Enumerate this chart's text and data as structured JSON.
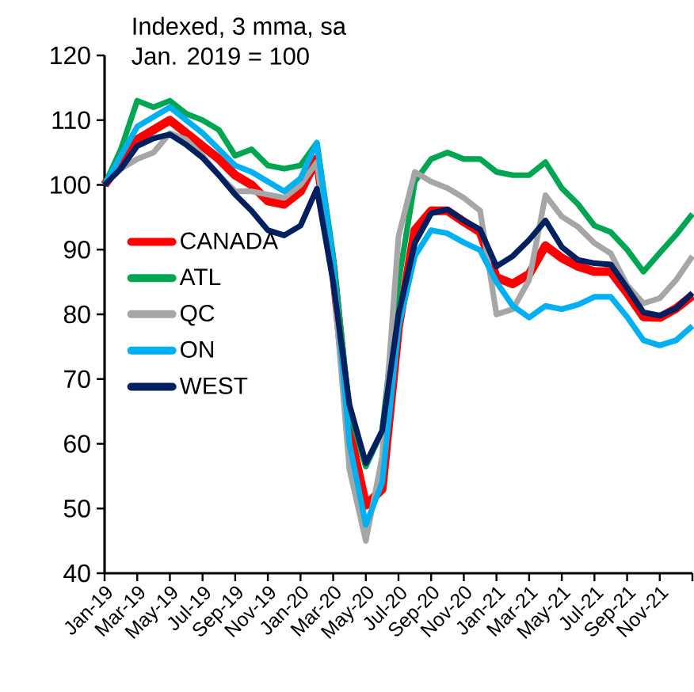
{
  "chart_data": {
    "type": "line",
    "title": "Indexed, 3 mma, sa",
    "subtitle": "Jan. 2019 = 100",
    "categories": [
      "Jan-19",
      null,
      "Mar-19",
      null,
      "May-19",
      null,
      "Jul-19",
      null,
      "Sep-19",
      null,
      "Nov-19",
      null,
      "Jan-20",
      null,
      "Mar-20",
      null,
      "May-20",
      null,
      "Jul-20",
      null,
      "Sep-20",
      null,
      "Nov-20",
      null,
      "Jan-21",
      null,
      "Mar-21",
      null,
      "May-21",
      null,
      "Jul-21",
      null,
      "Sep-21",
      null,
      "Nov-21",
      null,
      null
    ],
    "series": [
      {
        "name": "CANADA",
        "color": "#ff0000",
        "values": [
          100,
          103.5,
          107,
          108.5,
          110,
          108,
          106,
          104,
          101.5,
          100,
          97.5,
          97,
          99,
          104,
          87,
          62,
          50.5,
          53,
          78,
          93,
          96,
          96,
          94.3,
          92.7,
          85.7,
          84.7,
          86.2,
          90.6,
          88.7,
          87.4,
          86.6,
          86.6,
          83.3,
          79.6,
          79.5,
          80.9,
          82.9
        ]
      },
      {
        "name": "ATL",
        "color": "#00a651",
        "values": [
          100,
          105.5,
          113,
          112,
          113,
          111,
          110,
          108.5,
          104.5,
          105.5,
          103,
          102.5,
          103,
          106.5,
          89,
          65,
          56.5,
          62,
          85,
          100.5,
          104,
          105,
          104,
          104,
          102,
          101.5,
          101.5,
          103.5,
          99.5,
          97,
          93.7,
          92.7,
          90,
          86.6,
          89.5,
          92.3,
          95.5
        ]
      },
      {
        "name": "QC",
        "color": "#a6a6a6",
        "values": [
          100,
          102.5,
          104,
          105,
          108,
          107,
          104.5,
          101.5,
          99,
          99,
          98.5,
          98,
          100,
          103.5,
          86,
          56,
          45,
          58,
          92,
          102,
          100.5,
          99.5,
          98,
          96,
          80,
          80.8,
          85.3,
          98.4,
          95.1,
          93.5,
          91,
          89.4,
          84.5,
          81.7,
          82.5,
          85.3,
          89
        ]
      },
      {
        "name": "ON",
        "color": "#00b0f0",
        "values": [
          100,
          104.5,
          109,
          110.5,
          112,
          110,
          108,
          105.5,
          103,
          102,
          100.5,
          99,
          101,
          106.5,
          88,
          60,
          47.5,
          54,
          78,
          89,
          93,
          92.5,
          91.1,
          89.9,
          85,
          81.3,
          79.5,
          81.3,
          80.8,
          81.5,
          82.7,
          82.7,
          79.6,
          76,
          75.2,
          76,
          78.2
        ]
      },
      {
        "name": "WEST",
        "color": "#002060",
        "values": [
          100,
          102.5,
          106,
          107.2,
          107.8,
          106.2,
          104.2,
          101.5,
          98.5,
          96,
          93,
          92.2,
          93.7,
          99.4,
          85,
          66,
          57,
          62,
          80,
          91,
          95.6,
          96.2,
          94.5,
          93.1,
          87.4,
          89,
          91.5,
          94.5,
          90.4,
          88.4,
          87.9,
          87.7,
          84.1,
          80.3,
          79.8,
          80.9,
          83.3
        ]
      }
    ],
    "ylim": [
      40,
      120
    ],
    "yticks": [
      40,
      50,
      60,
      70,
      80,
      90,
      100,
      110,
      120
    ],
    "legend": "left"
  }
}
